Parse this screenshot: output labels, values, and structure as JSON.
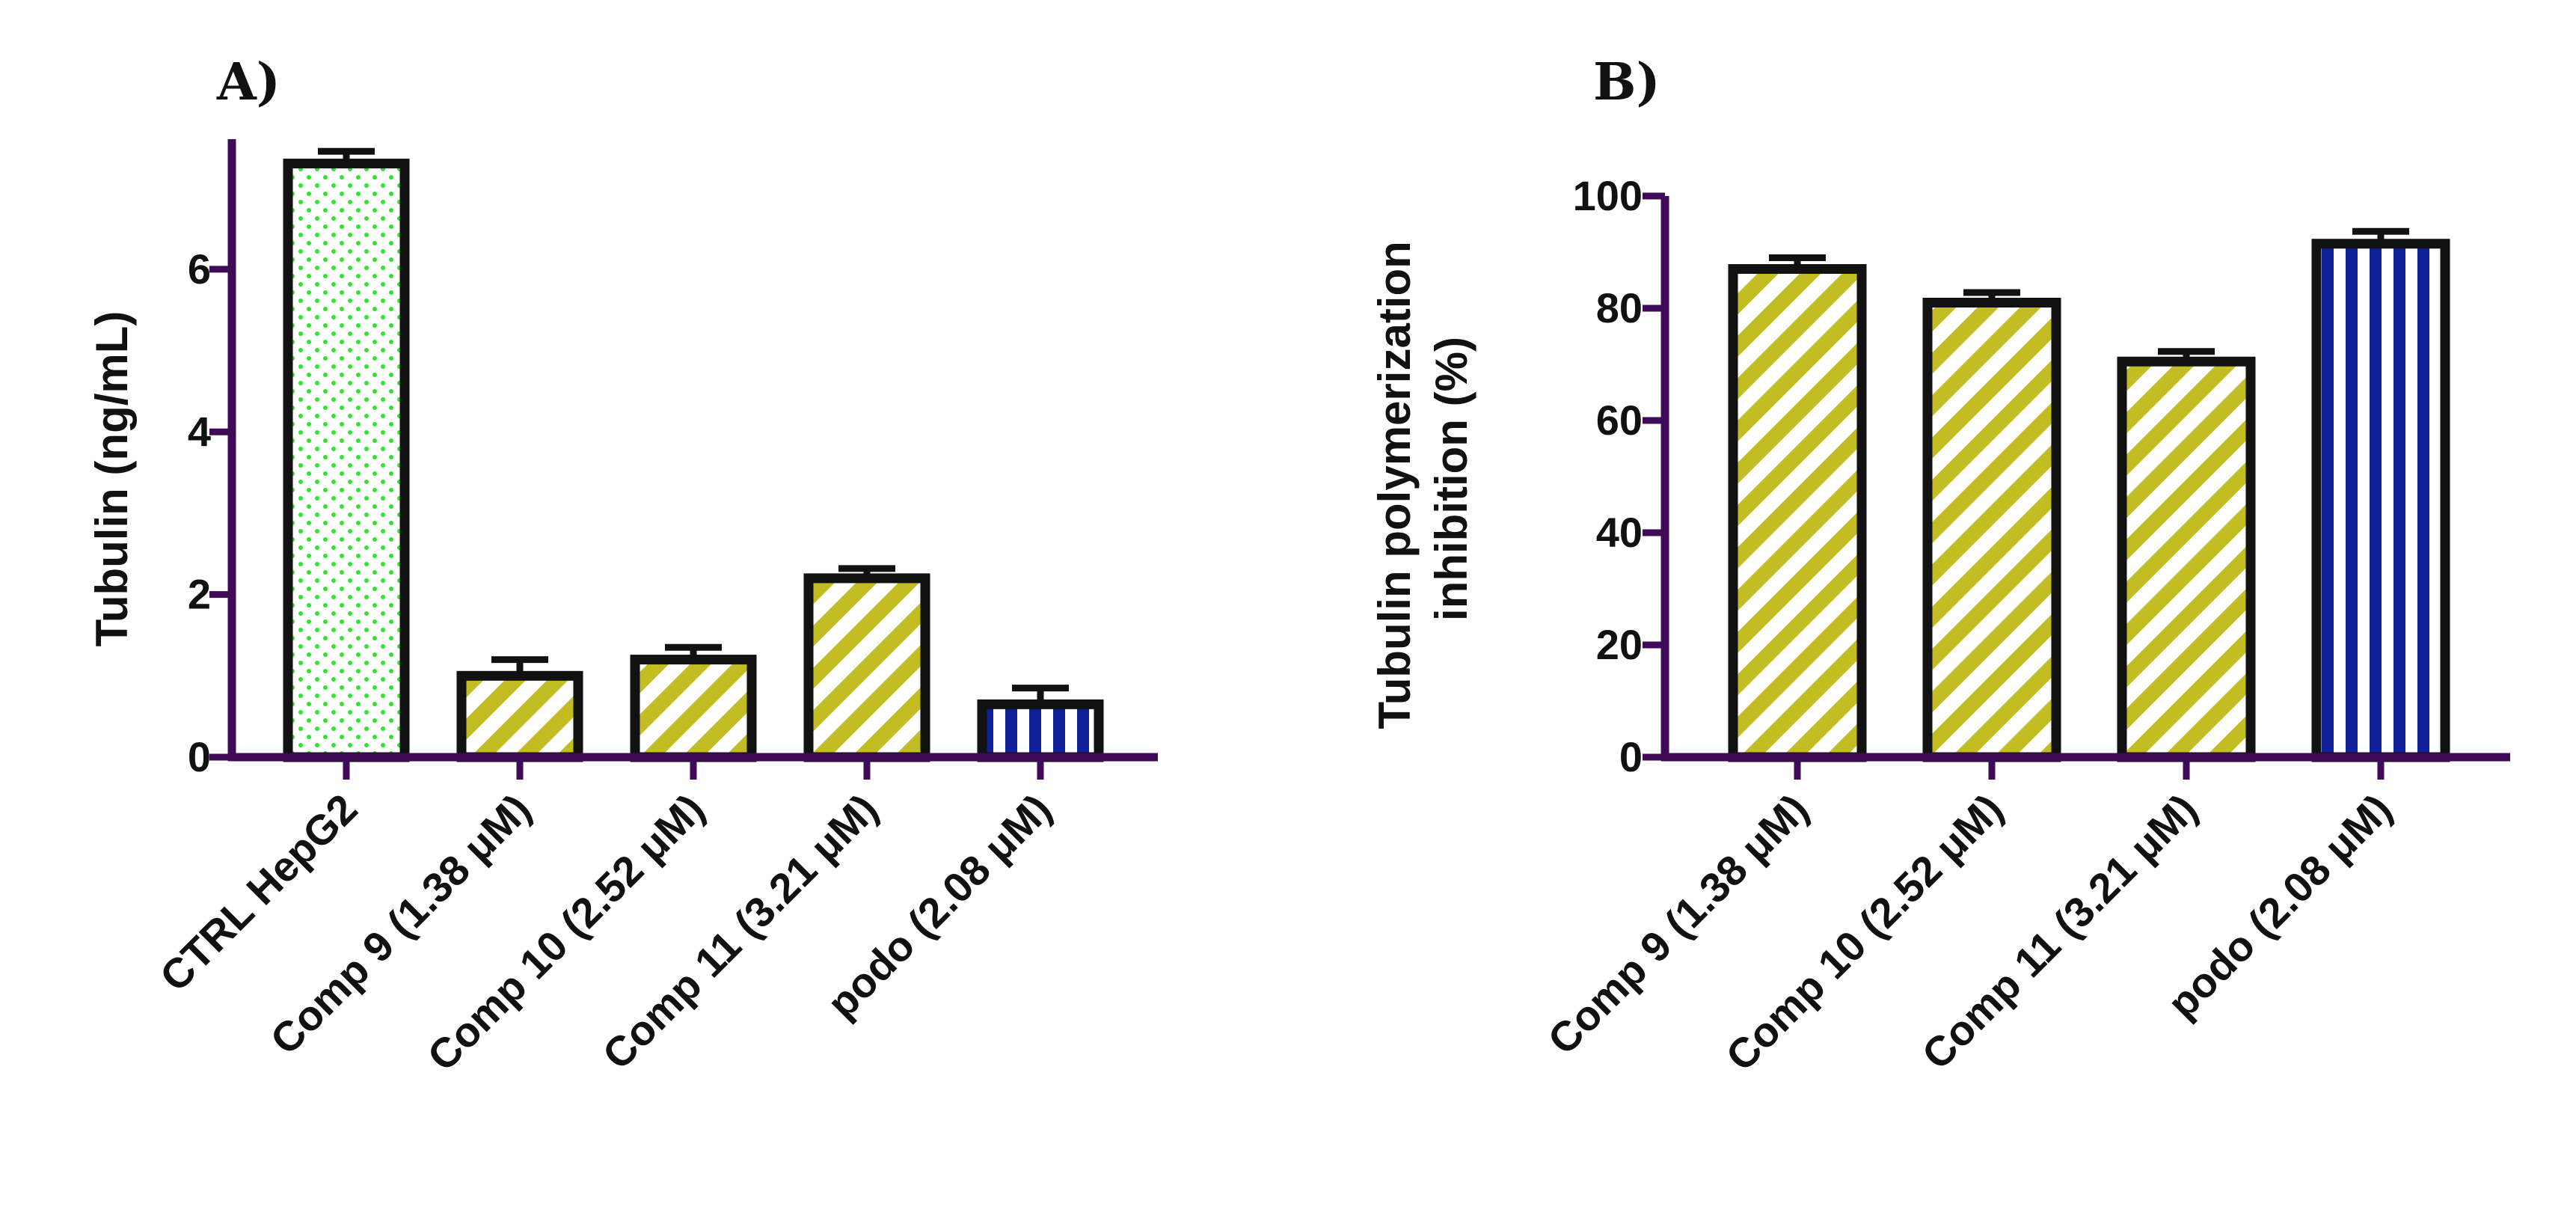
{
  "colors": {
    "axis": "#3f0a57",
    "outline": "#111111",
    "ctrl_fill": "#2ee62e",
    "comp_fill": "#c2bd23",
    "podo_fill": "#0f1f99"
  },
  "chart_data": [
    {
      "type": "bar",
      "panel_label": "A)",
      "categories": [
        "CTRL HepG2",
        "Comp 9 (1.38 μM)",
        "Comp 10 (2.52 μM)",
        "Comp 11 (3.21 μM)",
        "podo (2.08 μM)"
      ],
      "values": [
        7.3,
        1.0,
        1.2,
        2.2,
        0.65
      ],
      "errors": [
        0.15,
        0.2,
        0.15,
        0.12,
        0.2
      ],
      "patterns": [
        "dots",
        "diagonal",
        "diagonal",
        "diagonal",
        "vertical"
      ],
      "xlabel": "",
      "ylabel": "Tubulin (ng/mL)",
      "ylim": [
        0,
        7.6
      ],
      "yticks": [
        "0",
        "2",
        "4",
        "6"
      ],
      "grid": false
    },
    {
      "type": "bar",
      "panel_label": "B)",
      "categories": [
        "Comp 9 (1.38 μM)",
        "Comp 10 (2.52 μM)",
        "Comp 11 (3.21 μM)",
        "podo (2.08 μM)"
      ],
      "values": [
        87,
        81,
        70.5,
        91.5
      ],
      "errors": [
        2,
        1.8,
        1.8,
        2.2
      ],
      "patterns": [
        "diagonal",
        "diagonal",
        "diagonal",
        "vertical"
      ],
      "xlabel": "",
      "ylabel": "Tubulin polymerization inhibition (%)",
      "ylabel_lines": [
        "Tubulin polymerization",
        "inhibition (%)"
      ],
      "ylim": [
        0,
        100
      ],
      "yticks": [
        "0",
        "20",
        "40",
        "60",
        "80",
        "100"
      ],
      "grid": false
    }
  ]
}
